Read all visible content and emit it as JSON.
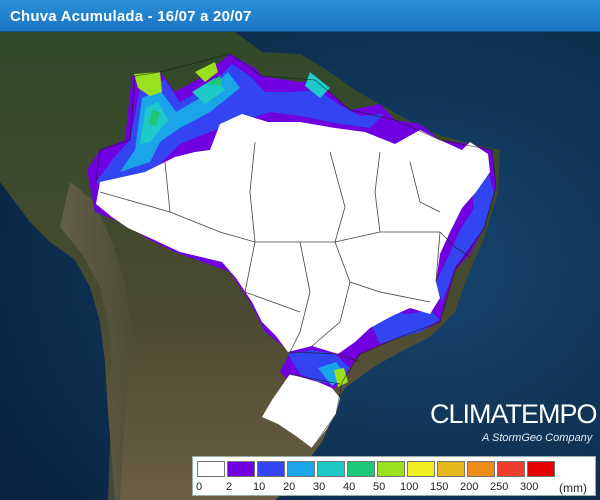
{
  "header": {
    "title": "Chuva Acumulada - 16/07 a 20/07"
  },
  "brand": {
    "name": "CLIMATEMPO",
    "tagline": "A StormGeo Company"
  },
  "legend": {
    "unit": "(mm)",
    "labels": [
      "0",
      "2",
      "10",
      "20",
      "30",
      "40",
      "50",
      "100",
      "150",
      "200",
      "250",
      "300"
    ],
    "colors": [
      "#ffffff",
      "#7000e0",
      "#3245f0",
      "#1aa5e8",
      "#1ecac8",
      "#1cc77a",
      "#9ae01e",
      "#eeee22",
      "#e6b71c",
      "#ee8a1a",
      "#ee3e2e",
      "#e60000"
    ]
  },
  "colors": {
    "header": "#1f80cb",
    "ocean": "#0c2a4a",
    "land": "#2d3a20"
  }
}
